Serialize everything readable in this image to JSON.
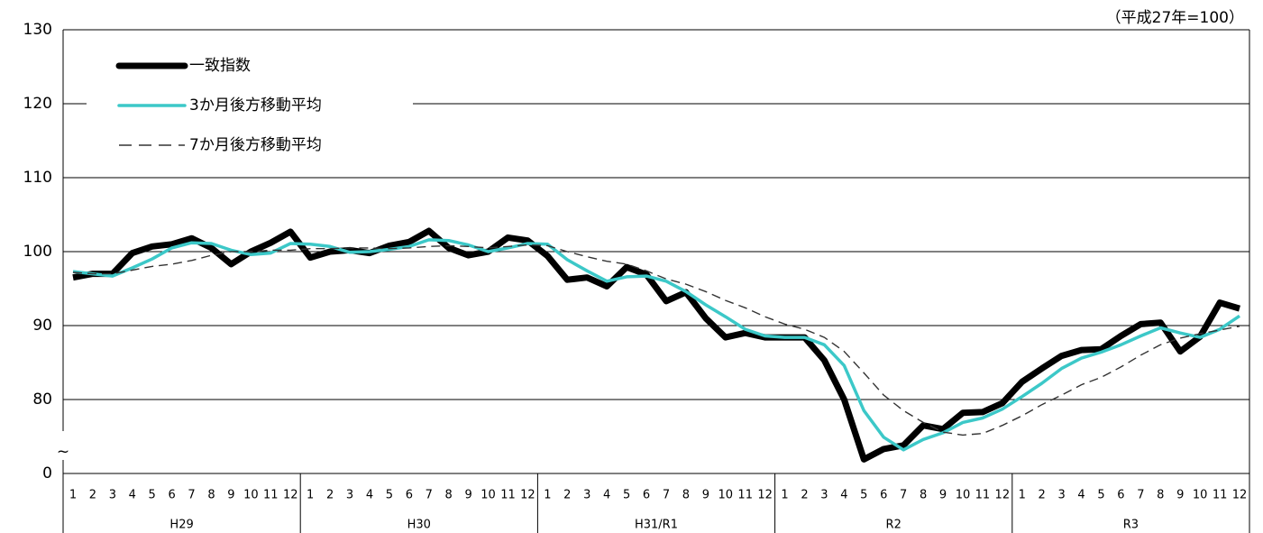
{
  "chart_data": {
    "type": "line",
    "note": "（平成27年=100）",
    "categories": [
      "1",
      "2",
      "3",
      "4",
      "5",
      "6",
      "7",
      "8",
      "9",
      "10",
      "11",
      "12",
      "1",
      "2",
      "3",
      "4",
      "5",
      "6",
      "7",
      "8",
      "9",
      "10",
      "11",
      "12",
      "1",
      "2",
      "3",
      "4",
      "5",
      "6",
      "7",
      "8",
      "9",
      "10",
      "11",
      "12",
      "1",
      "2",
      "3",
      "4",
      "5",
      "6",
      "7",
      "8",
      "9",
      "10",
      "11",
      "12",
      "1",
      "2",
      "3",
      "4",
      "5",
      "6",
      "7",
      "8",
      "9",
      "10",
      "11",
      "12"
    ],
    "groups": [
      "H29",
      "H30",
      "H31/R1",
      "R2",
      "R3"
    ],
    "series": [
      {
        "name": "一致指数",
        "color": "#000000",
        "linestyle": "solid",
        "values": [
          96.5,
          97,
          97,
          99.8,
          100.7,
          101,
          101.8,
          100.5,
          98.3,
          100,
          101.2,
          102.7,
          99.2,
          100,
          100.2,
          99.8,
          100.8,
          101.3,
          102.8,
          100.5,
          99.5,
          100,
          101.9,
          101.5,
          99.4,
          96.2,
          96.5,
          95.3,
          97.9,
          96.9,
          93.3,
          94.5,
          91,
          88.4,
          89,
          88.4,
          88.4,
          88.4,
          85.3,
          80,
          71.9,
          73.3,
          73.8,
          76.5,
          76,
          78.2,
          78.3,
          79.5,
          82.4,
          84.2,
          85.9,
          86.7,
          86.8,
          88.6,
          90.2,
          90.4,
          86.5,
          88.5,
          93.1,
          92.3
        ]
      },
      {
        "name": "3か月後方移動平均",
        "color": "#3cc8c8",
        "linestyle": "solid",
        "values": [
          97.3,
          97,
          96.7,
          97.8,
          99,
          100.5,
          101.2,
          101.1,
          100.2,
          99.6,
          99.8,
          101.1,
          101,
          100.7,
          99.9,
          100,
          100.3,
          100.7,
          101.6,
          101.5,
          100.9,
          100,
          100.5,
          101.1,
          101,
          98.9,
          97.4,
          96,
          96.6,
          96.7,
          96,
          94.6,
          92.8,
          91.2,
          89.5,
          88.6,
          88.4,
          88.4,
          87.4,
          84.6,
          78.5,
          74.9,
          73.2,
          74.6,
          75.5,
          76.9,
          77.5,
          78.7,
          80.4,
          82.2,
          84.2,
          85.6,
          86.4,
          87.4,
          88.6,
          89.7,
          89,
          88.4,
          89.5,
          91.3
        ]
      },
      {
        "name": "7か月後方移動平均",
        "color": "#333333",
        "linestyle": "dashed",
        "values": [
          97.2,
          97,
          97,
          97.5,
          98,
          98.3,
          98.8,
          99.5,
          100,
          100,
          100.2,
          100.2,
          100.4,
          100.4,
          100.5,
          100.5,
          100.4,
          100.5,
          100.7,
          100.8,
          100.7,
          100.5,
          100.7,
          100.9,
          100.8,
          100,
          99.3,
          98.7,
          98.3,
          97.4,
          96.3,
          95.6,
          94.6,
          93.4,
          92.4,
          91.2,
          90.2,
          89.5,
          88.4,
          86.5,
          83.6,
          80.6,
          78.5,
          76.9,
          75.6,
          75.2,
          75.4,
          76.5,
          77.8,
          79.3,
          80.6,
          82,
          83,
          84.4,
          86,
          87.4,
          88.3,
          88.9,
          89.4,
          89.9
        ]
      }
    ],
    "ylim": [
      0,
      130
    ],
    "yticks": [
      0,
      80,
      90,
      100,
      110,
      120,
      130
    ],
    "axis_break": [
      0,
      70
    ],
    "axis_break_symbol": "~",
    "grid": true,
    "legend": "upper left"
  }
}
